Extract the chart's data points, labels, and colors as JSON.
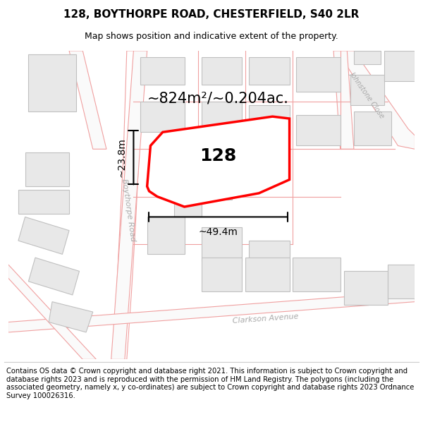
{
  "title": "128, BOYTHORPE ROAD, CHESTERFIELD, S40 2LR",
  "subtitle": "Map shows position and indicative extent of the property.",
  "footer": "Contains OS data © Crown copyright and database right 2021. This information is subject to Crown copyright and database rights 2023 and is reproduced with the permission of HM Land Registry. The polygons (including the associated geometry, namely x, y co-ordinates) are subject to Crown copyright and database rights 2023 Ordnance Survey 100026316.",
  "property_label": "128",
  "area_label": "~824m²/~0.204ac.",
  "width_label": "~49.4m",
  "height_label": "~23.8m",
  "road_name_1": "Boythorpe Road",
  "road_name_2": "Clarkson Avenue",
  "road_name_3": "Johnstone Close",
  "road_color": "#f0a0a0",
  "road_fill": "#ffffff",
  "building_fill": "#e8e8e8",
  "building_edge": "#c0c0c0",
  "property_edge": "#ff0000",
  "property_fill": "#ffffff",
  "dim_color": "#000000",
  "bg_color": "#ffffff",
  "title_fontsize": 11,
  "subtitle_fontsize": 9,
  "footer_fontsize": 7.2,
  "label_fontsize": 18,
  "area_fontsize": 15,
  "dim_fontsize": 10,
  "road_fontsize": 8
}
